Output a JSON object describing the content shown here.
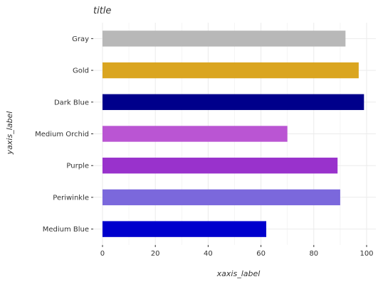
{
  "chart_data": {
    "type": "bar",
    "orientation": "horizontal",
    "title": "title",
    "xlabel": "xaxis_label",
    "ylabel": "yaxis_label",
    "categories": [
      "Medium Blue",
      "Periwinkle",
      "Purple",
      "Medium Orchid",
      "Dark Blue",
      "Gold",
      "Gray"
    ],
    "values": [
      62,
      90,
      89,
      70,
      99,
      97,
      92
    ],
    "colors": [
      "#0000CD",
      "#7B68DC",
      "#9932CC",
      "#BA55D3",
      "#00008B",
      "#DAA520",
      "#B8B8B8"
    ],
    "xlim": [
      0,
      100
    ],
    "xticks": [
      0,
      20,
      40,
      60,
      80,
      100
    ],
    "grid": true
  }
}
